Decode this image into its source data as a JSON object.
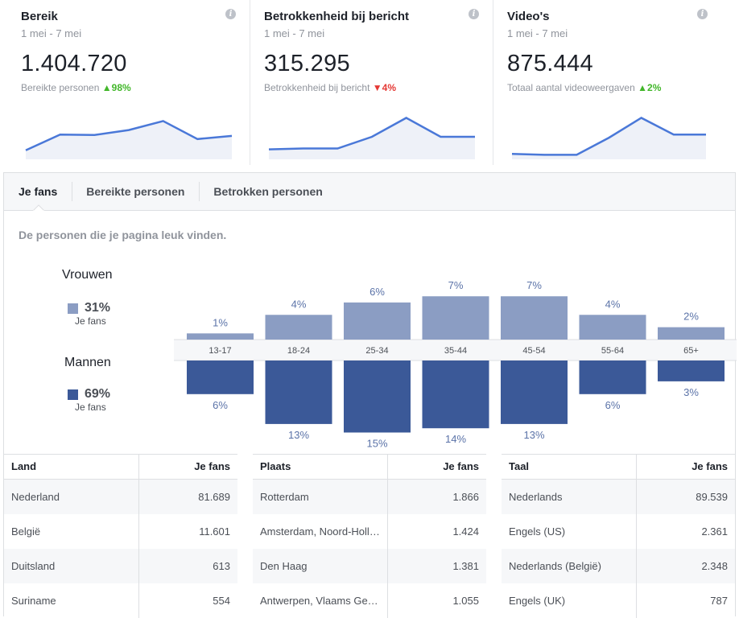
{
  "cards": [
    {
      "title": "Bereik",
      "range": "1 mei - 7 mei",
      "value": "1.404.720",
      "sub": "Bereikte personen",
      "delta": "98%",
      "dir": "up",
      "series": [
        0.2,
        0.55,
        0.54,
        0.65,
        0.85,
        0.45,
        0.52
      ]
    },
    {
      "title": "Betrokkenheid bij bericht",
      "range": "1 mei - 7 mei",
      "value": "315.295",
      "sub": "Betrokkenheid bij bericht",
      "delta": "4%",
      "dir": "down",
      "series": [
        0.22,
        0.24,
        0.24,
        0.5,
        0.92,
        0.5,
        0.5
      ]
    },
    {
      "title": "Video's",
      "range": "1 mei - 7 mei",
      "value": "875.444",
      "sub": "Totaal aantal videoweergaven",
      "delta": "2%",
      "dir": "up",
      "series": [
        0.12,
        0.1,
        0.1,
        0.48,
        0.92,
        0.55,
        0.55
      ]
    }
  ],
  "tabs": [
    "Je fans",
    "Bereikte personen",
    "Betrokken personen"
  ],
  "subtitle": "De personen die je pagina leuk vinden.",
  "legend": {
    "women": {
      "label": "Vrouwen",
      "pct": "31%",
      "sub": "Je fans",
      "color": "#8b9dc3"
    },
    "men": {
      "label": "Mannen",
      "pct": "69%",
      "sub": "Je fans",
      "color": "#3b5998"
    }
  },
  "chart_data": {
    "type": "bar",
    "categories": [
      "13-17",
      "18-24",
      "25-34",
      "35-44",
      "45-54",
      "55-64",
      "65+"
    ],
    "series": [
      {
        "name": "Vrouwen",
        "values": [
          1,
          4,
          6,
          7,
          7,
          4,
          2
        ],
        "labels": [
          "1%",
          "4%",
          "6%",
          "7%",
          "7%",
          "4%",
          "2%"
        ]
      },
      {
        "name": "Mannen",
        "values": [
          6,
          13,
          15,
          14,
          13,
          6,
          3
        ],
        "labels": [
          "6%",
          "13%",
          "15%",
          "14%",
          "13%",
          "6%",
          "3%"
        ]
      }
    ]
  },
  "tables": [
    {
      "h1": "Land",
      "h2": "Je fans",
      "rows": [
        [
          "Nederland",
          "81.689"
        ],
        [
          "België",
          "11.601"
        ],
        [
          "Duitsland",
          "613"
        ],
        [
          "Suriname",
          "554"
        ]
      ]
    },
    {
      "h1": "Plaats",
      "h2": "Je fans",
      "rows": [
        [
          "Rotterdam",
          "1.866"
        ],
        [
          "Amsterdam, Noord-Holl…",
          "1.424"
        ],
        [
          "Den Haag",
          "1.381"
        ],
        [
          "Antwerpen, Vlaams Ge…",
          "1.055"
        ]
      ]
    },
    {
      "h1": "Taal",
      "h2": "Je fans",
      "rows": [
        [
          "Nederlands",
          "89.539"
        ],
        [
          "Engels (US)",
          "2.361"
        ],
        [
          "Nederlands (België)",
          "2.348"
        ],
        [
          "Engels (UK)",
          "787"
        ]
      ]
    }
  ]
}
